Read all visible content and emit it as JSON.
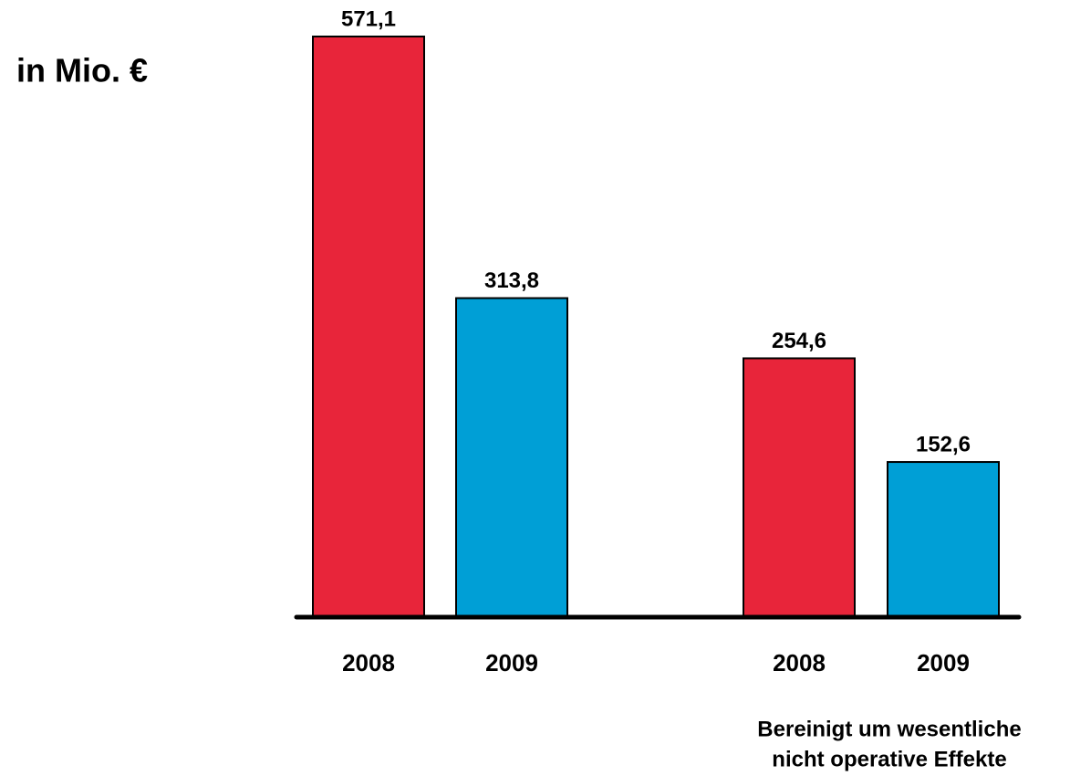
{
  "chart_data": {
    "type": "bar",
    "ylabel": "in Mio. €",
    "categories": [
      "2008",
      "2009",
      "2008",
      "2009"
    ],
    "values": [
      571.1,
      313.8,
      254.6,
      152.6
    ],
    "value_labels": [
      "571,1",
      "313,8",
      "254,6",
      "152,6"
    ],
    "colors": [
      "#e8253a",
      "#009fd6",
      "#e8253a",
      "#009fd6"
    ],
    "annotation": [
      "Bereinigt um wesentliche",
      "nicht operative Effekte"
    ]
  }
}
